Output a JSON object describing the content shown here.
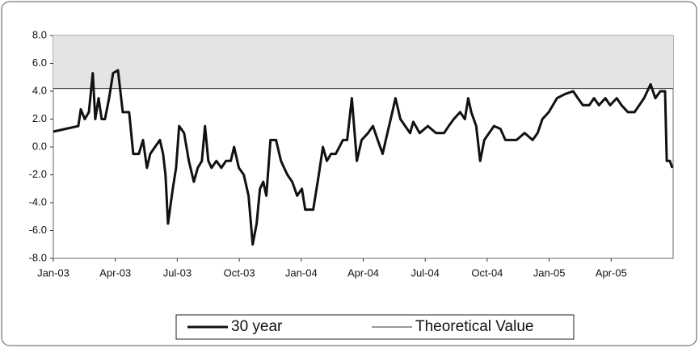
{
  "chart_data": {
    "type": "line",
    "xlim": [
      0,
      30
    ],
    "ylim": [
      -8,
      8
    ],
    "xticks": [
      {
        "value": 0,
        "label": "Jan-03"
      },
      {
        "value": 3,
        "label": "Apr-03"
      },
      {
        "value": 6,
        "label": "Jul-03"
      },
      {
        "value": 9,
        "label": "Oct-03"
      },
      {
        "value": 12,
        "label": "Jan-04"
      },
      {
        "value": 15,
        "label": "Apr-04"
      },
      {
        "value": 18,
        "label": "Jul-04"
      },
      {
        "value": 21,
        "label": "Oct-04"
      },
      {
        "value": 24,
        "label": "Jan-05"
      },
      {
        "value": 27,
        "label": "Apr-05"
      }
    ],
    "yticks": [
      {
        "value": 8,
        "label": "8.0"
      },
      {
        "value": 6,
        "label": "6.0"
      },
      {
        "value": 4,
        "label": "4.0"
      },
      {
        "value": 2,
        "label": "2.0"
      },
      {
        "value": 0,
        "label": "0.0"
      },
      {
        "value": -2,
        "label": "-2.0"
      },
      {
        "value": -4,
        "label": "-4.0"
      },
      {
        "value": -6,
        "label": "-6.0"
      },
      {
        "value": -8,
        "label": "-8.0"
      }
    ],
    "legend": "bottom",
    "series": [
      {
        "name": "30 year",
        "color": "#111111",
        "width": 3,
        "x": [
          0,
          1.21,
          1.33,
          1.52,
          1.72,
          1.91,
          2.03,
          2.19,
          2.34,
          2.5,
          2.7,
          2.89,
          3.13,
          3.36,
          3.67,
          3.87,
          4.14,
          4.34,
          4.53,
          4.69,
          4.92,
          5.16,
          5.31,
          5.43,
          5.55,
          5.78,
          5.94,
          6.09,
          6.33,
          6.56,
          6.8,
          6.99,
          7.19,
          7.34,
          7.5,
          7.66,
          7.89,
          8.13,
          8.36,
          8.59,
          8.75,
          8.98,
          9.22,
          9.45,
          9.65,
          9.84,
          10,
          10.16,
          10.31,
          10.51,
          10.78,
          11.02,
          11.17,
          11.33,
          11.56,
          11.8,
          12.03,
          12.19,
          12.58,
          12.85,
          13.05,
          13.24,
          13.44,
          13.67,
          14.02,
          14.22,
          14.45,
          14.69,
          14.92,
          15.23,
          15.47,
          15.7,
          15.94,
          16.17,
          16.41,
          16.56,
          16.8,
          17.03,
          17.27,
          17.42,
          17.73,
          18.13,
          18.52,
          18.91,
          19.14,
          19.38,
          19.69,
          19.92,
          20.08,
          20.23,
          20.47,
          20.66,
          20.86,
          21.09,
          21.33,
          21.64,
          21.88,
          22.42,
          22.81,
          23.2,
          23.44,
          23.67,
          23.98,
          24.38,
          24.77,
          25.16,
          25.39,
          25.63,
          25.94,
          26.17,
          26.41,
          26.72,
          26.95,
          27.27,
          27.5,
          27.81,
          28.13,
          28.36,
          28.59,
          28.91,
          29.14,
          29.38,
          29.61,
          29.69,
          29.84,
          29.96
        ],
        "values": [
          1.1,
          1.5,
          2.7,
          2.0,
          2.5,
          5.3,
          2.0,
          3.5,
          2.0,
          2.0,
          3.5,
          5.3,
          5.5,
          2.5,
          2.5,
          -0.5,
          -0.5,
          0.5,
          -1.5,
          -0.5,
          0,
          0.5,
          -0.5,
          -2.0,
          -5.5,
          -3.0,
          -1.5,
          1.5,
          1.0,
          -1.0,
          -2.5,
          -1.5,
          -1.0,
          1.5,
          -1.0,
          -1.5,
          -1.0,
          -1.5,
          -1.0,
          -1.0,
          0,
          -1.5,
          -2.0,
          -3.5,
          -7.0,
          -5.5,
          -3.0,
          -2.5,
          -3.5,
          0.5,
          0.5,
          -1.0,
          -1.5,
          -2.0,
          -2.5,
          -3.5,
          -3.0,
          -4.5,
          -4.5,
          -2.0,
          0,
          -1.0,
          -0.5,
          -0.5,
          0.5,
          0.5,
          3.5,
          -1.0,
          0.5,
          1.0,
          1.5,
          0.5,
          -0.5,
          1.0,
          2.5,
          3.5,
          2.0,
          1.5,
          1.0,
          1.8,
          1.0,
          1.5,
          1.0,
          1.0,
          1.5,
          2.0,
          2.5,
          2.0,
          3.5,
          2.5,
          1.5,
          -1.0,
          0.5,
          1.0,
          1.5,
          1.3,
          0.5,
          0.5,
          1.0,
          0.5,
          1.0,
          2.0,
          2.5,
          3.5,
          3.8,
          4.0,
          3.5,
          3.0,
          3.0,
          3.5,
          3.0,
          3.5,
          3.0,
          3.5,
          3.0,
          2.5,
          2.5,
          3.0,
          3.5,
          4.5,
          3.5,
          4.0,
          4.0,
          -1.0,
          -1.0,
          -1.5
        ]
      },
      {
        "name": "Theoretical Value",
        "color": "#333333",
        "width": 1,
        "shade_above": "#e4e4e4",
        "x": [
          0,
          30
        ],
        "values": [
          4.2,
          4.2
        ]
      }
    ]
  }
}
